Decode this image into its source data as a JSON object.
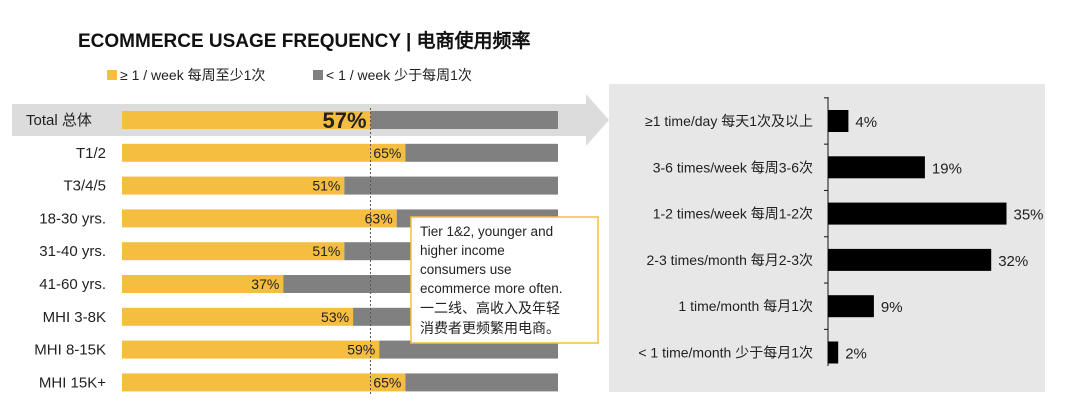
{
  "title": "ECOMMERCE USAGE FREQUENCY | 电商使用频率",
  "legend": [
    {
      "label": "≥ 1 /  week 每周至少1次",
      "color": "#F5BE41"
    },
    {
      "label": "< 1 / week 少于每周1次",
      "color": "#808080"
    }
  ],
  "callout": {
    "lines": [
      "Tier 1&2, younger and",
      "higher income",
      "consumers use",
      "ecommerce more often.",
      "一二线、高收入及年轻",
      "消费者更频繁用电商。"
    ]
  },
  "chart_data": [
    {
      "type": "bar",
      "orientation": "horizontal",
      "stacked": true,
      "categories": [
        "Total 总体",
        "T1/2",
        "T3/4/5",
        "18-30 yrs.",
        "31-40 yrs.",
        "41-60 yrs.",
        "MHI 3-8K",
        "MHI 8-15K",
        "MHI 15K+"
      ],
      "series": [
        {
          "name": "≥ 1 /  week 每周至少1次",
          "values": [
            57,
            65,
            51,
            63,
            51,
            37,
            53,
            59,
            65
          ]
        },
        {
          "name": "< 1 / week 少于每周1次",
          "values": [
            43,
            35,
            49,
            37,
            49,
            63,
            47,
            41,
            35
          ]
        }
      ],
      "data_labels": [
        "57%",
        "65%",
        "51%",
        "63%",
        "51%",
        "37%",
        "53%",
        "59%",
        "65%"
      ],
      "reference_line": 57,
      "xlim": [
        0,
        100
      ]
    },
    {
      "type": "bar",
      "orientation": "horizontal",
      "categories": [
        "≥1 time/day 每天1次及以上",
        "3-6 times/week 每周3-6次",
        "1-2 times/week 每周1-2次",
        "2-3 times/month 每月2-3次",
        "1 time/month 每月1次",
        "< 1 time/month 少于每月1次"
      ],
      "values": [
        4,
        19,
        35,
        32,
        9,
        2
      ],
      "data_labels": [
        "4%",
        "19%",
        "35%",
        "32%",
        "9%",
        "2%"
      ],
      "color": "#000000"
    }
  ]
}
